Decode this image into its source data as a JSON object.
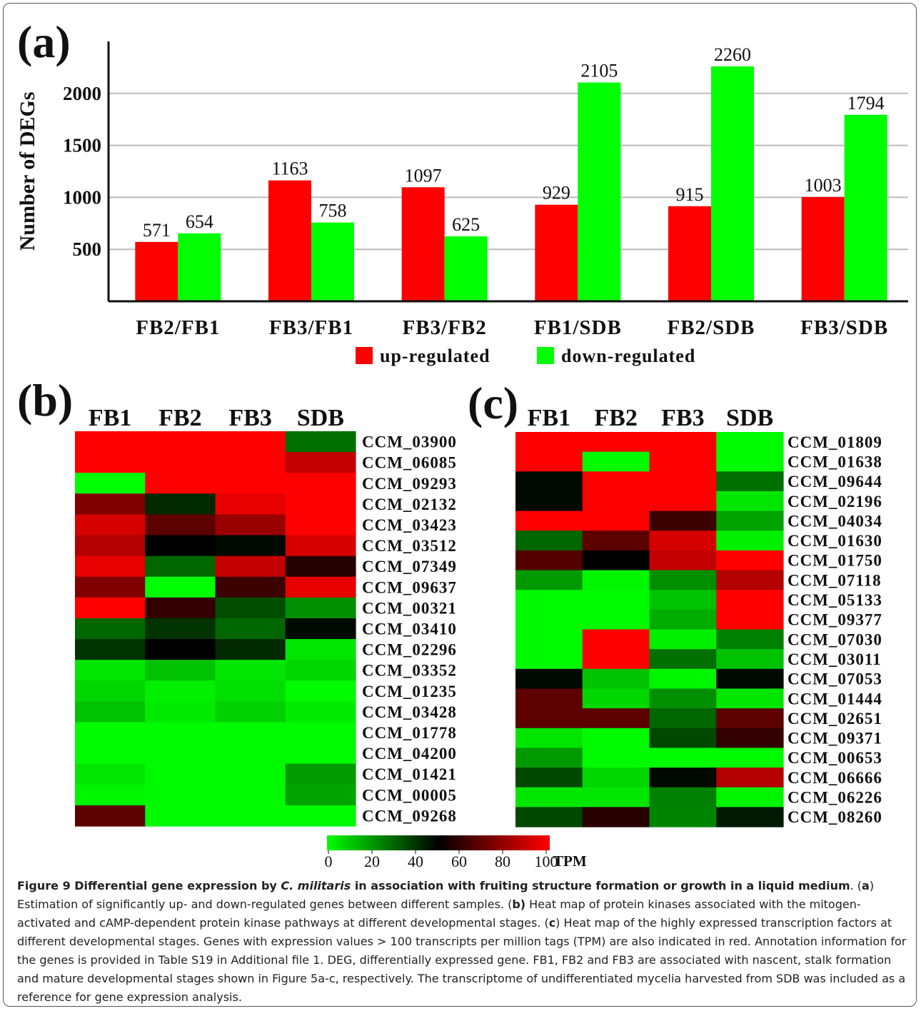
{
  "panel_a": {
    "letter": "(a)",
    "chart_data": {
      "type": "bar",
      "ylabel": "Number of DEGs",
      "xlabel": "",
      "categories": [
        "FB2/FB1",
        "FB3/FB1",
        "FB3/FB2",
        "FB1/SDB",
        "FB2/SDB",
        "FB3/SDB"
      ],
      "series": [
        {
          "name": "up-regulated",
          "color": "#ff0000",
          "values": [
            571,
            1163,
            1097,
            929,
            915,
            1003
          ]
        },
        {
          "name": "down-regulated",
          "color": "#00ff00",
          "values": [
            654,
            758,
            625,
            2105,
            2260,
            1794
          ]
        }
      ],
      "yticks": [
        500,
        1000,
        1500,
        2000
      ],
      "ylim": [
        0,
        2500
      ],
      "grid": true,
      "data_labels": true,
      "legend_position": "bottom"
    }
  },
  "panel_b": {
    "letter": "(b)",
    "chart_data": {
      "type": "heatmap",
      "columns": [
        "FB1",
        "FB2",
        "FB3",
        "SDB"
      ],
      "rows": [
        "CCM_03900",
        "CCM_06085",
        "CCM_09293",
        "CCM_02132",
        "CCM_03423",
        "CCM_03512",
        "CCM_07349",
        "CCM_09637",
        "CCM_00321",
        "CCM_03410",
        "CCM_02296",
        "CCM_03352",
        "CCM_01235",
        "CCM_03428",
        "CCM_01778",
        "CCM_04200",
        "CCM_01421",
        "CCM_00005",
        "CCM_09268"
      ],
      "values": [
        [
          100,
          100,
          100,
          28
        ],
        [
          100,
          100,
          100,
          88
        ],
        [
          0,
          100,
          100,
          100
        ],
        [
          75,
          42,
          95,
          100
        ],
        [
          92,
          68,
          80,
          100
        ],
        [
          85,
          50,
          48,
          92
        ],
        [
          95,
          30,
          88,
          57
        ],
        [
          75,
          0,
          62,
          95
        ],
        [
          100,
          60,
          35,
          22
        ],
        [
          30,
          40,
          30,
          48
        ],
        [
          40,
          50,
          42,
          5
        ],
        [
          5,
          12,
          5,
          8
        ],
        [
          8,
          3,
          6,
          1
        ],
        [
          12,
          4,
          9,
          4
        ],
        [
          1,
          1,
          1,
          1
        ],
        [
          1,
          1,
          1,
          1
        ],
        [
          5,
          1,
          1,
          20
        ],
        [
          2,
          1,
          1,
          18
        ],
        [
          68,
          1,
          1,
          1
        ]
      ]
    }
  },
  "panel_c": {
    "letter": "(c)",
    "chart_data": {
      "type": "heatmap",
      "columns": [
        "FB1",
        "FB2",
        "FB3",
        "SDB"
      ],
      "rows": [
        "CCM_01809",
        "CCM_01638",
        "CCM_09644",
        "CCM_02196",
        "CCM_04034",
        "CCM_01630",
        "CCM_01750",
        "CCM_07118",
        "CCM_05133",
        "CCM_09377",
        "CCM_07030",
        "CCM_03011",
        "CCM_07053",
        "CCM_01444",
        "CCM_02651",
        "CCM_09371",
        "CCM_00653",
        "CCM_06666",
        "CCM_06226",
        "CCM_08260"
      ],
      "values": [
        [
          100,
          100,
          100,
          1
        ],
        [
          100,
          1,
          100,
          1
        ],
        [
          48,
          100,
          100,
          28
        ],
        [
          48,
          100,
          100,
          5
        ],
        [
          100,
          100,
          62,
          18
        ],
        [
          30,
          68,
          92,
          3
        ],
        [
          66,
          50,
          88,
          100
        ],
        [
          20,
          2,
          22,
          85
        ],
        [
          1,
          1,
          12,
          100
        ],
        [
          1,
          1,
          16,
          100
        ],
        [
          1,
          100,
          3,
          25
        ],
        [
          1,
          100,
          28,
          12
        ],
        [
          48,
          12,
          2,
          48
        ],
        [
          68,
          8,
          22,
          5
        ],
        [
          68,
          68,
          30,
          68
        ],
        [
          5,
          1,
          36,
          60
        ],
        [
          20,
          1,
          1,
          1
        ],
        [
          36,
          8,
          48,
          85
        ],
        [
          5,
          5,
          25,
          2
        ],
        [
          36,
          58,
          24,
          45
        ]
      ]
    }
  },
  "colorbar": {
    "ticks": [
      "0",
      "20",
      "40",
      "60",
      "80",
      "100"
    ],
    "unit": "TPM",
    "low_color": "#00ff00",
    "mid_color": "#000000",
    "high_color": "#ff0000"
  },
  "caption": {
    "head_1": "Figure 9 Differential gene expression by ",
    "head_species": "C. militaris",
    "head_2": " in association with fruiting structure formation or growth in a liquid medium",
    "head_3": ". (",
    "a": "a",
    "t1": ") Estimation of significantly up- and down-regulated genes between different samples. (",
    "b": "b)",
    "t2": " Heat map of protein kinases associated with the mitogen-activated and cAMP-dependent protein kinase pathways at different developmental stages. (",
    "c": "c",
    "t3": ") Heat map of the highly expressed transcription factors at different developmental stages. Genes with expression values > 100 transcripts per million tags (TPM) are also indicated in red. Annotation information for the genes is provided in Table S19 in Additional file 1. DEG, differentially expressed gene. FB1, FB2 and FB3 are associated with nascent, stalk formation and mature developmental stages shown in Figure 5a-c, respectively. The transcriptome of undifferentiated mycelia harvested from SDB was included as a reference for gene expression analysis."
  }
}
